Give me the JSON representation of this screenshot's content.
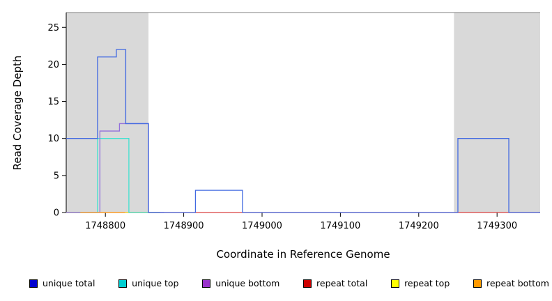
{
  "chart_data": {
    "type": "line",
    "title": "",
    "xlabel": "Coordinate in Reference Genome",
    "ylabel": "Read Coverage Depth",
    "xlim": [
      1748750,
      1749355
    ],
    "ylim": [
      0,
      27
    ],
    "x_ticks": [
      1748800,
      1748900,
      1749000,
      1749100,
      1749200,
      1749300
    ],
    "y_ticks": [
      0,
      5,
      10,
      15,
      20,
      25
    ],
    "grid": false,
    "background_color": "#ffffff",
    "shaded_regions": [
      {
        "x0": 1748750,
        "x1": 1748855,
        "color": "#d9d9d9"
      },
      {
        "x0": 1749245,
        "x1": 1749355,
        "color": "#d9d9d9"
      }
    ],
    "top_border": {
      "y": 27,
      "color": "#808080"
    },
    "series": [
      {
        "name": "repeat total",
        "color": "#d94040",
        "points": [
          [
            1748750,
            0
          ],
          [
            1749355,
            0
          ]
        ]
      },
      {
        "name": "repeat top",
        "color": "#f2e422",
        "points": [
          [
            1748750,
            0
          ],
          [
            1748870,
            0
          ]
        ]
      },
      {
        "name": "unique top",
        "color": "#40e0d0",
        "points": [
          [
            1748750,
            0
          ],
          [
            1748790,
            10
          ],
          [
            1748830,
            0
          ],
          [
            1748870,
            0
          ]
        ]
      },
      {
        "name": "unique bottom",
        "color": "#9370db",
        "points": [
          [
            1748750,
            0
          ],
          [
            1748793,
            11
          ],
          [
            1748818,
            12
          ],
          [
            1748855,
            0
          ],
          [
            1748875,
            0
          ]
        ]
      },
      {
        "name": "repeat bottom",
        "color": "#ffa033",
        "points": [
          [
            1748768,
            0
          ],
          [
            1748825,
            0
          ]
        ]
      },
      {
        "name": "unique total",
        "color": "#4169e1",
        "points": [
          [
            1748750,
            10
          ],
          [
            1748790,
            21
          ],
          [
            1748814,
            22
          ],
          [
            1748826,
            12
          ],
          [
            1748855,
            0
          ],
          [
            1748915,
            3
          ],
          [
            1748975,
            0
          ],
          [
            1749250,
            10
          ],
          [
            1749315,
            0
          ],
          [
            1749355,
            0
          ]
        ]
      }
    ],
    "legend": [
      {
        "label": "unique total",
        "color": "#0000cd"
      },
      {
        "label": "unique top",
        "color": "#00ced1"
      },
      {
        "label": "unique bottom",
        "color": "#9932cc"
      },
      {
        "label": "repeat total",
        "color": "#cd0000"
      },
      {
        "label": "repeat top",
        "color": "#ffff00"
      },
      {
        "label": "repeat bottom",
        "color": "#ff9900"
      }
    ],
    "legend_position": "bottom"
  }
}
